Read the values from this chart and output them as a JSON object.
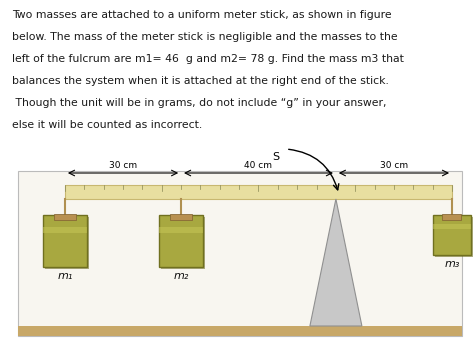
{
  "bg_color": "#ffffff",
  "panel_bg": "#ffffff",
  "text_lines": [
    "Two masses are attached to a uniform meter stick, as shown in figure",
    "below. The mass of the meter stick is negligible and the masses to the",
    "left of the fulcrum are m1= 46  g and m2= 78 g. Find the mass m3 that",
    "balances the system when it is attached at the right end of the stick.",
    " Though the unit will be in grams, do not include “g” in your answer,",
    "else it will be counted as incorrect."
  ],
  "segment_labels": [
    "30 cm",
    "40 cm",
    "30 cm"
  ],
  "mass_labels": [
    "m₁",
    "m₂",
    "m₃"
  ],
  "stick_color": "#e8dfa0",
  "stick_border": "#c8b870",
  "mass_fill": "#a8a840",
  "mass_dark": "#606010",
  "mass_border": "#707020",
  "floor_color": "#c8a868",
  "fulcrum_fill": "#c8c8c8",
  "fulcrum_border": "#909090",
  "rope_color": "#b09050",
  "arrow_label": "S"
}
